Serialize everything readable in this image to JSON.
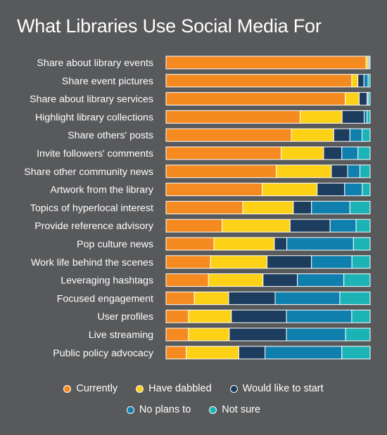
{
  "colors": {
    "background": "#58595b",
    "currently": "#f58a21",
    "have_dabbled": "#fcd116",
    "would_like_to_start": "#1c3d5e",
    "no_plans_to": "#0f7fae",
    "not_sure": "#1cb3b7"
  },
  "chart_data": {
    "type": "bar",
    "orientation": "horizontal",
    "stacked": true,
    "title": "What Libraries Use Social Media For",
    "categories": [
      "Share about library events",
      "Share event pictures",
      "Share about library services",
      "Highlight library collections",
      "Share others' posts",
      "Invite followers' comments",
      "Share other community news",
      "Artwork from the library",
      "Topics of hyperlocal interest",
      "Provide reference advisory",
      "Pop culture news",
      "Work life behind the scenes",
      "Leveraging hashtags",
      "Focused engagement",
      "User profiles",
      "Live streaming",
      "Public policy advocacy"
    ],
    "series": [
      {
        "name": "Currently",
        "color": "#f58a21",
        "values": [
          98,
          91,
          90,
          67,
          62,
          57,
          54,
          49,
          38,
          28,
          23,
          22,
          21,
          14,
          11,
          11,
          10
        ]
      },
      {
        "name": "Have dabbled",
        "color": "#fcd116",
        "values": [
          1,
          3,
          7,
          21,
          21,
          21,
          27,
          28,
          25,
          34,
          29,
          28,
          27,
          17,
          21,
          20,
          26
        ]
      },
      {
        "name": "Would like to start",
        "color": "#1c3d5e",
        "values": [
          0.5,
          3,
          4,
          11,
          8,
          9,
          8,
          14,
          9,
          20,
          6,
          22,
          17,
          23,
          27,
          28,
          13
        ]
      },
      {
        "name": "No plans to",
        "color": "#0f7fae",
        "values": [
          0.5,
          2,
          0.5,
          1.5,
          6,
          8,
          6,
          9,
          19,
          13,
          32,
          20,
          23,
          32,
          32,
          29,
          38
        ]
      },
      {
        "name": "Not sure",
        "color": "#1cb3b7",
        "values": [
          0,
          1,
          1,
          1.5,
          4,
          6,
          5,
          4,
          10,
          7,
          8,
          9,
          13,
          15,
          9,
          12,
          14
        ]
      }
    ],
    "xlim": [
      0,
      100
    ],
    "grid": false,
    "legend_position": "bottom"
  }
}
